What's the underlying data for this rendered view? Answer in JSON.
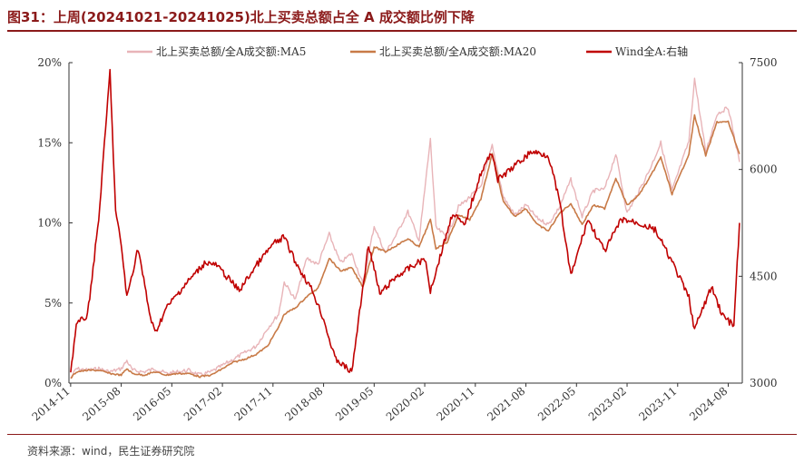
{
  "title": "图31：上周(20241021-20241025)北上买卖总额占全 A 成交额比例下降",
  "source": "资料来源：wind，民生证券研究院",
  "chart_data": {
    "type": "line",
    "legend_position": "top",
    "x_ticks": [
      "2014-11",
      "2015-08",
      "2016-05",
      "2017-02",
      "2017-11",
      "2018-08",
      "2019-05",
      "2020-02",
      "2020-11",
      "2021-08",
      "2022-05",
      "2023-02",
      "2023-11",
      "2024-08"
    ],
    "y_left": {
      "ticks": [
        "0%",
        "5%",
        "10%",
        "15%",
        "20%"
      ],
      "range": [
        0,
        20
      ]
    },
    "y_right": {
      "ticks": [
        "3000",
        "4500",
        "6000",
        "7500"
      ],
      "range": [
        3000,
        7500
      ]
    },
    "colors": {
      "ma5": "#e8b4b8",
      "ma20": "#c87a47",
      "wind": "#c00000"
    },
    "series": [
      {
        "name": "北上买卖总额/全A成交额:MA5",
        "axis": "left",
        "points": [
          [
            "2014-11",
            0.3
          ],
          [
            "2014-12",
            0.9
          ],
          [
            "2015-02",
            0.8
          ],
          [
            "2015-04",
            0.9
          ],
          [
            "2015-06",
            0.7
          ],
          [
            "2015-08",
            0.9
          ],
          [
            "2015-09",
            1.4
          ],
          [
            "2015-10",
            0.8
          ],
          [
            "2015-12",
            0.7
          ],
          [
            "2016-02",
            0.9
          ],
          [
            "2016-04",
            0.6
          ],
          [
            "2016-06",
            0.7
          ],
          [
            "2016-08",
            0.8
          ],
          [
            "2016-10",
            0.5
          ],
          [
            "2016-12",
            0.7
          ],
          [
            "2017-02",
            1.1
          ],
          [
            "2017-04",
            1.5
          ],
          [
            "2017-06",
            1.9
          ],
          [
            "2017-08",
            2.3
          ],
          [
            "2017-10",
            3.4
          ],
          [
            "2017-12",
            4.3
          ],
          [
            "2018-01",
            6.3
          ],
          [
            "2018-03",
            5.2
          ],
          [
            "2018-05",
            7.8
          ],
          [
            "2018-07",
            7.4
          ],
          [
            "2018-09",
            9.3
          ],
          [
            "2018-11",
            7.5
          ],
          [
            "2019-01",
            8.1
          ],
          [
            "2019-03",
            6.2
          ],
          [
            "2019-05",
            9.8
          ],
          [
            "2019-07",
            8.1
          ],
          [
            "2019-09",
            9.3
          ],
          [
            "2019-11",
            10.7
          ],
          [
            "2020-01",
            8.9
          ],
          [
            "2020-03",
            15.2
          ],
          [
            "2020-04",
            9.7
          ],
          [
            "2020-06",
            9.1
          ],
          [
            "2020-08",
            11.0
          ],
          [
            "2020-10",
            11.6
          ],
          [
            "2020-12",
            12.3
          ],
          [
            "2021-02",
            14.8
          ],
          [
            "2021-04",
            11.6
          ],
          [
            "2021-06",
            10.5
          ],
          [
            "2021-08",
            11.1
          ],
          [
            "2021-10",
            10.3
          ],
          [
            "2021-12",
            9.9
          ],
          [
            "2022-02",
            11.0
          ],
          [
            "2022-04",
            12.7
          ],
          [
            "2022-06",
            10.4
          ],
          [
            "2022-08",
            12.0
          ],
          [
            "2022-10",
            12.1
          ],
          [
            "2022-12",
            14.3
          ],
          [
            "2023-02",
            10.6
          ],
          [
            "2023-04",
            11.9
          ],
          [
            "2023-06",
            13.3
          ],
          [
            "2023-08",
            15.0
          ],
          [
            "2023-10",
            12.0
          ],
          [
            "2024-01",
            15.1
          ],
          [
            "2024-02",
            19.0
          ],
          [
            "2024-04",
            14.4
          ],
          [
            "2024-06",
            16.8
          ],
          [
            "2024-08",
            17.2
          ],
          [
            "2024-10",
            13.8
          ]
        ]
      },
      {
        "name": "北上买卖总额/全A成交额:MA20",
        "axis": "left",
        "points": [
          [
            "2014-11",
            0.3
          ],
          [
            "2014-12",
            0.7
          ],
          [
            "2015-02",
            0.8
          ],
          [
            "2015-04",
            0.8
          ],
          [
            "2015-06",
            0.6
          ],
          [
            "2015-08",
            0.5
          ],
          [
            "2015-09",
            0.9
          ],
          [
            "2015-10",
            0.6
          ],
          [
            "2015-12",
            0.5
          ],
          [
            "2016-02",
            0.7
          ],
          [
            "2016-04",
            0.5
          ],
          [
            "2016-06",
            0.6
          ],
          [
            "2016-08",
            0.6
          ],
          [
            "2016-10",
            0.4
          ],
          [
            "2016-12",
            0.5
          ],
          [
            "2017-02",
            0.9
          ],
          [
            "2017-04",
            1.3
          ],
          [
            "2017-06",
            1.5
          ],
          [
            "2017-08",
            1.8
          ],
          [
            "2017-10",
            2.3
          ],
          [
            "2017-12",
            3.5
          ],
          [
            "2018-01",
            4.3
          ],
          [
            "2018-03",
            4.7
          ],
          [
            "2018-05",
            5.4
          ],
          [
            "2018-07",
            5.9
          ],
          [
            "2018-09",
            7.8
          ],
          [
            "2018-11",
            7.0
          ],
          [
            "2019-01",
            7.2
          ],
          [
            "2019-03",
            6.0
          ],
          [
            "2019-05",
            8.5
          ],
          [
            "2019-07",
            8.2
          ],
          [
            "2019-09",
            8.6
          ],
          [
            "2019-11",
            9.0
          ],
          [
            "2020-01",
            8.5
          ],
          [
            "2020-03",
            10.2
          ],
          [
            "2020-04",
            8.4
          ],
          [
            "2020-06",
            8.8
          ],
          [
            "2020-08",
            10.5
          ],
          [
            "2020-10",
            10.2
          ],
          [
            "2020-12",
            11.5
          ],
          [
            "2021-02",
            14.3
          ],
          [
            "2021-04",
            11.3
          ],
          [
            "2021-06",
            10.4
          ],
          [
            "2021-08",
            10.9
          ],
          [
            "2021-10",
            9.9
          ],
          [
            "2021-12",
            9.5
          ],
          [
            "2022-02",
            10.6
          ],
          [
            "2022-04",
            11.2
          ],
          [
            "2022-06",
            9.9
          ],
          [
            "2022-08",
            11.1
          ],
          [
            "2022-10",
            10.9
          ],
          [
            "2022-12",
            12.8
          ],
          [
            "2023-02",
            11.1
          ],
          [
            "2023-04",
            11.7
          ],
          [
            "2023-06",
            12.8
          ],
          [
            "2023-08",
            14.1
          ],
          [
            "2023-10",
            11.8
          ],
          [
            "2024-01",
            14.3
          ],
          [
            "2024-02",
            16.7
          ],
          [
            "2024-04",
            14.2
          ],
          [
            "2024-06",
            16.3
          ],
          [
            "2024-08",
            16.3
          ],
          [
            "2024-10",
            14.3
          ]
        ]
      },
      {
        "name": "Wind全A:右轴",
        "axis": "right",
        "points": [
          [
            "2014-11",
            3150
          ],
          [
            "2014-12",
            3820
          ],
          [
            "2015-02",
            3950
          ],
          [
            "2015-04",
            5300
          ],
          [
            "2015-06",
            7380
          ],
          [
            "2015-07",
            5400
          ],
          [
            "2015-08",
            4950
          ],
          [
            "2015-09",
            4200
          ],
          [
            "2015-11",
            4900
          ],
          [
            "2016-01",
            3990
          ],
          [
            "2016-02",
            3700
          ],
          [
            "2016-04",
            4050
          ],
          [
            "2016-07",
            4350
          ],
          [
            "2016-11",
            4700
          ],
          [
            "2017-01",
            4650
          ],
          [
            "2017-05",
            4300
          ],
          [
            "2017-08",
            4650
          ],
          [
            "2017-11",
            4950
          ],
          [
            "2018-01",
            5050
          ],
          [
            "2018-03",
            4700
          ],
          [
            "2018-06",
            4300
          ],
          [
            "2018-08",
            3900
          ],
          [
            "2018-10",
            3350
          ],
          [
            "2019-01",
            3150
          ],
          [
            "2019-04",
            4950
          ],
          [
            "2019-06",
            4250
          ],
          [
            "2019-09",
            4500
          ],
          [
            "2019-12",
            4650
          ],
          [
            "2020-02",
            4750
          ],
          [
            "2020-03",
            4300
          ],
          [
            "2020-07",
            5400
          ],
          [
            "2020-09",
            5200
          ],
          [
            "2020-12",
            5950
          ],
          [
            "2021-02",
            6250
          ],
          [
            "2021-03",
            5850
          ],
          [
            "2021-06",
            6050
          ],
          [
            "2021-09",
            6250
          ],
          [
            "2021-12",
            6200
          ],
          [
            "2022-02",
            5550
          ],
          [
            "2022-04",
            4500
          ],
          [
            "2022-07",
            5300
          ],
          [
            "2022-10",
            4850
          ],
          [
            "2023-01",
            5300
          ],
          [
            "2023-04",
            5250
          ],
          [
            "2023-07",
            5150
          ],
          [
            "2023-10",
            4700
          ],
          [
            "2024-01",
            4200
          ],
          [
            "2024-02",
            3750
          ],
          [
            "2024-05",
            4350
          ],
          [
            "2024-07",
            3950
          ],
          [
            "2024-09",
            3800
          ],
          [
            "2024-10",
            5250
          ]
        ]
      }
    ]
  }
}
